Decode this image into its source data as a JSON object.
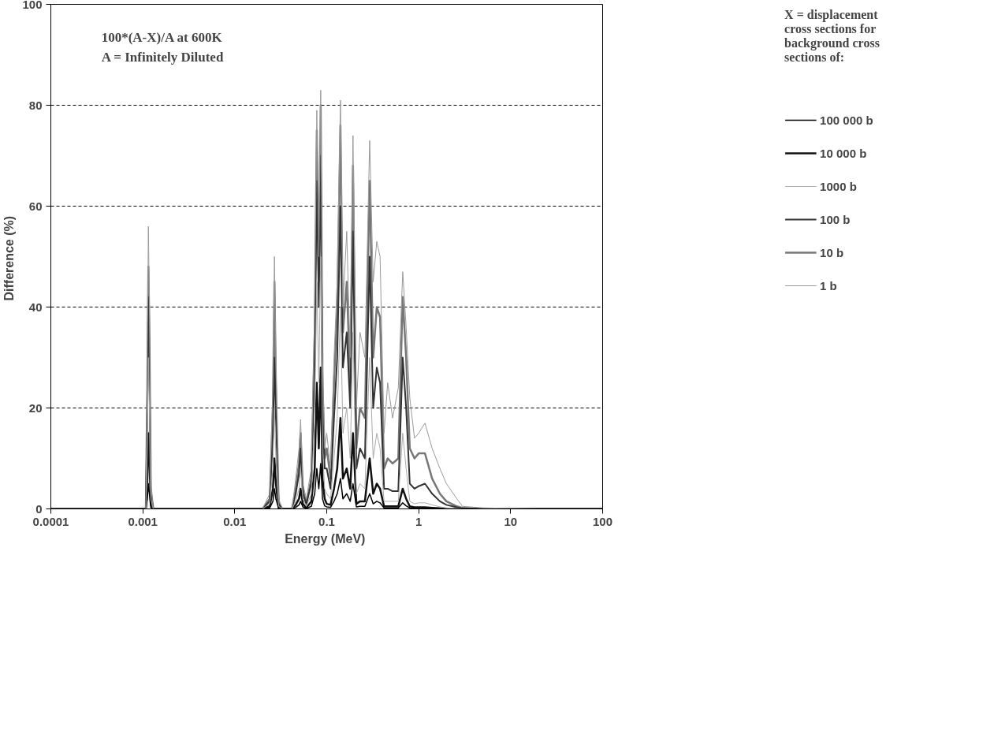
{
  "chart_data": {
    "type": "line",
    "xlabel": "Energy  (MeV)",
    "ylabel": "Difference  (%)",
    "legend_title": "X = displacement cross sections for background cross sections of:",
    "annotations": [
      "100*(A-X)/A at 600K",
      "A = Infinitely Diluted"
    ],
    "log": "x",
    "grid": "y",
    "legend": "right",
    "line_style": "solid",
    "marker": "none",
    "xlim": [
      0.0001,
      100
    ],
    "xticks": [
      0.0001,
      0.001,
      0.01,
      0.1,
      1,
      10,
      100
    ],
    "ylim": [
      0,
      100
    ],
    "yticks": [
      0,
      20,
      40,
      60,
      80,
      100
    ],
    "x": [
      0.0001,
      0.001,
      0.00108,
      0.00112,
      0.00115,
      0.00118,
      0.00122,
      0.0013,
      0.02,
      0.024,
      0.026,
      0.027,
      0.028,
      0.03,
      0.033,
      0.042,
      0.046,
      0.05,
      0.052,
      0.055,
      0.06,
      0.068,
      0.074,
      0.078,
      0.082,
      0.086,
      0.09,
      0.095,
      0.1,
      0.11,
      0.12,
      0.13,
      0.141,
      0.15,
      0.165,
      0.18,
      0.193,
      0.21,
      0.23,
      0.26,
      0.293,
      0.32,
      0.35,
      0.38,
      0.42,
      0.46,
      0.52,
      0.6,
      0.67,
      0.73,
      0.8,
      0.9,
      1.0,
      1.17,
      1.4,
      1.7,
      2.0,
      2.6,
      3.0,
      5,
      20,
      100
    ],
    "series": [
      {
        "name": "100 000 b",
        "color": "#000000",
        "values": [
          0,
          0,
          0,
          2,
          5,
          3,
          0.3,
          0,
          0,
          0.2,
          1.5,
          4,
          2,
          0.1,
          0,
          0,
          0.3,
          0.8,
          1.5,
          0.4,
          0.1,
          0.5,
          3,
          8,
          4,
          9,
          2,
          0.6,
          0.4,
          0.3,
          1.5,
          3,
          6,
          2,
          3,
          1.5,
          5,
          0.4,
          0.5,
          0.5,
          3,
          1,
          1.5,
          1.2,
          0.2,
          0.2,
          0.2,
          0.2,
          1.2,
          0.6,
          0.2,
          0.1,
          0.1,
          0.1,
          0.1,
          0,
          0,
          0,
          0,
          0,
          0,
          0
        ]
      },
      {
        "name": "10 000 b",
        "color": "#111111",
        "values": [
          0,
          0,
          0,
          6,
          15,
          10,
          1,
          0,
          0,
          0.5,
          4,
          10,
          5,
          0.2,
          0,
          0,
          0.8,
          2,
          4,
          1,
          0.2,
          1.5,
          8,
          25,
          12,
          28,
          6,
          2,
          1,
          0.8,
          4,
          8,
          18,
          6,
          8,
          4,
          15,
          1,
          1.5,
          1.5,
          10,
          3,
          5,
          4,
          0.5,
          0.5,
          0.5,
          0.5,
          4,
          2,
          0.5,
          0.3,
          0.3,
          0.3,
          0.2,
          0.1,
          0,
          0,
          0,
          0,
          0,
          0
        ]
      },
      {
        "name": "1000 b",
        "color": "#aaaaaa",
        "values": [
          0,
          0,
          0,
          12,
          30,
          20,
          2,
          0,
          0,
          1,
          8,
          20,
          10,
          0.5,
          0,
          0,
          1.5,
          4,
          8,
          2,
          0.5,
          3,
          18,
          45,
          25,
          50,
          12,
          4,
          3,
          2,
          10,
          18,
          40,
          15,
          20,
          10,
          35,
          3,
          5,
          4,
          30,
          10,
          15,
          12,
          1.5,
          1.5,
          1.5,
          1.5,
          15,
          8,
          1.5,
          1,
          1.2,
          1.2,
          0.8,
          0.4,
          0.2,
          0.1,
          0,
          0,
          0,
          0
        ]
      },
      {
        "name": "100 b",
        "color": "#333333",
        "values": [
          0,
          0,
          0,
          20,
          42,
          30,
          3,
          0,
          0,
          1.5,
          15,
          30,
          18,
          1,
          0,
          0,
          3,
          7,
          12,
          3,
          1,
          5,
          30,
          65,
          40,
          70,
          20,
          8,
          8,
          4,
          18,
          30,
          60,
          28,
          35,
          20,
          55,
          8,
          12,
          10,
          50,
          20,
          28,
          25,
          4,
          4,
          3.5,
          3.5,
          30,
          20,
          5,
          4,
          4.5,
          5,
          3,
          1.5,
          0.8,
          0.3,
          0.1,
          0,
          0,
          0
        ]
      },
      {
        "name": "10 b",
        "color": "#777777",
        "values": [
          0,
          0,
          0,
          25,
          48,
          35,
          4,
          0,
          0,
          2,
          20,
          45,
          25,
          1,
          0,
          0,
          4,
          9,
          15,
          4,
          1,
          6,
          35,
          75,
          45,
          80,
          25,
          10,
          12,
          6,
          25,
          40,
          76,
          35,
          45,
          25,
          68,
          12,
          20,
          18,
          65,
          30,
          40,
          38,
          8,
          10,
          9,
          10,
          42,
          30,
          12,
          10,
          11,
          11,
          6,
          3,
          1.5,
          0.5,
          0.2,
          0,
          0,
          0
        ]
      },
      {
        "name": "1 b",
        "color": "#999999",
        "values": [
          0,
          0,
          0,
          30,
          56,
          40,
          5,
          0,
          0,
          3,
          25,
          50,
          30,
          2,
          0,
          0,
          6,
          12,
          17.7,
          5,
          2,
          8,
          40,
          79,
          50,
          83,
          30,
          12,
          15,
          8,
          30,
          45,
          81,
          40,
          55,
          30,
          74,
          20,
          35,
          30,
          73,
          45,
          53,
          50,
          15,
          25,
          18,
          24,
          47,
          36,
          22,
          14,
          15,
          17,
          12,
          8,
          5,
          2,
          0.5,
          0.2,
          0,
          0
        ]
      }
    ]
  }
}
